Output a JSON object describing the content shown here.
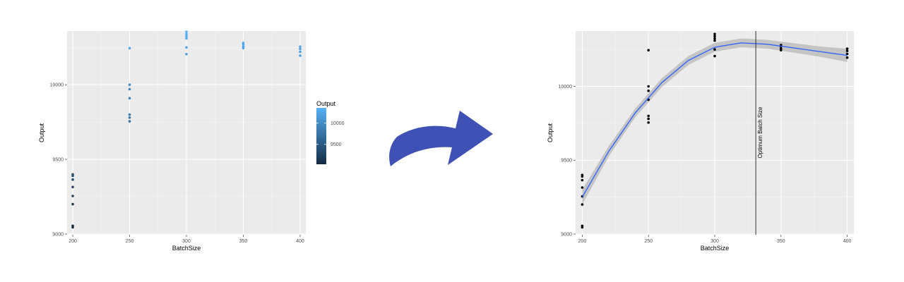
{
  "chart_data": [
    {
      "type": "scatter",
      "xlabel": "BatchSize",
      "ylabel": "Output",
      "xlim": [
        195,
        405
      ],
      "ylim": [
        8995,
        10360
      ],
      "xticks": [
        200,
        250,
        300,
        350,
        400
      ],
      "yticks": [
        9000,
        9500,
        10000
      ],
      "grid": true,
      "legend": {
        "title": "Output",
        "labels": [
          10000,
          9500
        ],
        "position": "right",
        "range": [
          9030,
          10360
        ]
      },
      "colors": {
        "low": "#132b43",
        "high": "#56b1f7",
        "panel": "#ebebeb"
      },
      "points": [
        {
          "x": 200,
          "y": 9045
        },
        {
          "x": 200,
          "y": 9055
        },
        {
          "x": 200,
          "y": 9200
        },
        {
          "x": 200,
          "y": 9255
        },
        {
          "x": 200,
          "y": 9315
        },
        {
          "x": 200,
          "y": 9365
        },
        {
          "x": 200,
          "y": 9390
        },
        {
          "x": 200,
          "y": 9400
        },
        {
          "x": 250,
          "y": 9755
        },
        {
          "x": 250,
          "y": 9780
        },
        {
          "x": 250,
          "y": 9800
        },
        {
          "x": 250,
          "y": 9910
        },
        {
          "x": 250,
          "y": 9970
        },
        {
          "x": 250,
          "y": 10000
        },
        {
          "x": 250,
          "y": 10245
        },
        {
          "x": 300,
          "y": 10205
        },
        {
          "x": 300,
          "y": 10250
        },
        {
          "x": 300,
          "y": 10310
        },
        {
          "x": 300,
          "y": 10325
        },
        {
          "x": 300,
          "y": 10340
        },
        {
          "x": 300,
          "y": 10355
        },
        {
          "x": 350,
          "y": 10245
        },
        {
          "x": 350,
          "y": 10255
        },
        {
          "x": 350,
          "y": 10270
        },
        {
          "x": 350,
          "y": 10280
        },
        {
          "x": 400,
          "y": 10195
        },
        {
          "x": 400,
          "y": 10220
        },
        {
          "x": 400,
          "y": 10240
        },
        {
          "x": 400,
          "y": 10255
        }
      ]
    },
    {
      "type": "scatter",
      "xlabel": "BatchSize",
      "ylabel": "Output",
      "xlim": [
        195,
        405
      ],
      "ylim": [
        8995,
        10375
      ],
      "xticks": [
        200,
        250,
        300,
        350,
        400
      ],
      "yticks": [
        9000,
        9500,
        10000
      ],
      "grid": true,
      "colors": {
        "points": "#000000",
        "smooth": "#3366ff",
        "band": "#bdbdbd",
        "vline": "#333333",
        "panel": "#ebebeb"
      },
      "points": [
        {
          "x": 200,
          "y": 9045
        },
        {
          "x": 200,
          "y": 9055
        },
        {
          "x": 200,
          "y": 9200
        },
        {
          "x": 200,
          "y": 9255
        },
        {
          "x": 200,
          "y": 9315
        },
        {
          "x": 200,
          "y": 9365
        },
        {
          "x": 200,
          "y": 9390
        },
        {
          "x": 200,
          "y": 9400
        },
        {
          "x": 250,
          "y": 9755
        },
        {
          "x": 250,
          "y": 9780
        },
        {
          "x": 250,
          "y": 9800
        },
        {
          "x": 250,
          "y": 9910
        },
        {
          "x": 250,
          "y": 9970
        },
        {
          "x": 250,
          "y": 10000
        },
        {
          "x": 250,
          "y": 10245
        },
        {
          "x": 300,
          "y": 10205
        },
        {
          "x": 300,
          "y": 10250
        },
        {
          "x": 300,
          "y": 10310
        },
        {
          "x": 300,
          "y": 10325
        },
        {
          "x": 300,
          "y": 10340
        },
        {
          "x": 300,
          "y": 10355
        },
        {
          "x": 350,
          "y": 10245
        },
        {
          "x": 350,
          "y": 10255
        },
        {
          "x": 350,
          "y": 10270
        },
        {
          "x": 350,
          "y": 10280
        },
        {
          "x": 400,
          "y": 10195
        },
        {
          "x": 400,
          "y": 10220
        },
        {
          "x": 400,
          "y": 10240
        },
        {
          "x": 400,
          "y": 10255
        }
      ],
      "smooth": {
        "x": [
          200,
          220,
          240,
          260,
          280,
          300,
          320,
          340,
          360,
          380,
          400
        ],
        "y": [
          9250,
          9560,
          9820,
          10025,
          10175,
          10265,
          10295,
          10285,
          10260,
          10235,
          10210
        ],
        "lower": [
          9200,
          9525,
          9790,
          9995,
          10145,
          10235,
          10265,
          10255,
          10228,
          10200,
          10165
        ],
        "upper": [
          9300,
          9595,
          9850,
          10055,
          10205,
          10295,
          10325,
          10315,
          10292,
          10270,
          10255
        ]
      },
      "vline": {
        "x": 331,
        "label": "Optimum Batch Size"
      }
    }
  ],
  "arrow": {
    "color": "#3f51b5",
    "direction": "right"
  }
}
